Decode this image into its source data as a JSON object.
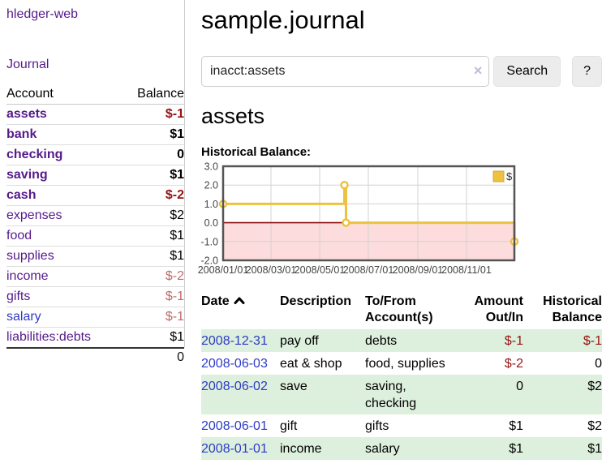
{
  "app": {
    "title": "hledger-web"
  },
  "sidebar": {
    "nav_journal": "Journal",
    "accounts_table": {
      "headers": {
        "account": "Account",
        "balance": "Balance"
      },
      "rows": [
        {
          "name": "assets",
          "depth": 1,
          "bold": true,
          "balance": "$-1"
        },
        {
          "name": "bank",
          "depth": 2,
          "bold": true,
          "balance": "$1"
        },
        {
          "name": "checking",
          "depth": 3,
          "bold": true,
          "balance": "0"
        },
        {
          "name": "saving",
          "depth": 3,
          "bold": true,
          "balance": "$1"
        },
        {
          "name": "cash",
          "depth": 2,
          "bold": true,
          "balance": "$-2"
        },
        {
          "name": "expenses",
          "depth": 1,
          "bold": false,
          "balance": "$2"
        },
        {
          "name": "food",
          "depth": 2,
          "bold": false,
          "balance": "$1"
        },
        {
          "name": "supplies",
          "depth": 2,
          "bold": false,
          "balance": "$1"
        },
        {
          "name": "income",
          "depth": 1,
          "bold": false,
          "balance": "$-2"
        },
        {
          "name": "gifts",
          "depth": 2,
          "bold": false,
          "balance": "$-1"
        },
        {
          "name": "salary",
          "depth": 2,
          "bold": false,
          "visited": false,
          "balance": "$-1"
        },
        {
          "name": "liabilities:debts",
          "depth": 1,
          "bold": false,
          "balance": "$1"
        }
      ],
      "total": "0"
    }
  },
  "header": {
    "title": "sample.journal"
  },
  "search": {
    "value": "inacct:assets",
    "clear_icon": "×",
    "button": "Search",
    "help_button": "?"
  },
  "account_page": {
    "heading": "assets",
    "chart_label": "Historical Balance:"
  },
  "chart_data": {
    "type": "line",
    "step": true,
    "title": "Historical Balance:",
    "series": [
      {
        "name": "$",
        "color": "#edc240",
        "points": [
          [
            "2008-01-01",
            1
          ],
          [
            "2008-06-01",
            2
          ],
          [
            "2008-06-03",
            0
          ],
          [
            "2008-12-31",
            -1
          ]
        ]
      }
    ],
    "x_range": [
      "2008-01-01",
      "2008-12-31"
    ],
    "x_ticks": [
      "2008/01/01",
      "2008/03/01",
      "2008/05/01",
      "2008/07/01",
      "2008/09/01",
      "2008/11/01"
    ],
    "y_ticks": [
      3.0,
      2.0,
      1.0,
      0.0,
      -1.0,
      -2.0
    ],
    "ylim": [
      -2,
      3
    ],
    "legend": {
      "label": "$",
      "position": "top-right"
    },
    "grid": true,
    "negative_region_color": "#fcdcdc",
    "zero_line_color": "#8e1111"
  },
  "register": {
    "headers": {
      "date": "Date",
      "description": "Description",
      "accounts": "To/From\nAccount(s)",
      "amount": "Amount\nOut/In",
      "balance": "Historical\nBalance",
      "sort_icon": "chevron-up"
    },
    "rows": [
      {
        "date": "2008-12-31",
        "description": "pay off",
        "accounts": "debts",
        "amount": "$-1",
        "balance": "$-1"
      },
      {
        "date": "2008-06-03",
        "description": "eat & shop",
        "accounts": "food, supplies",
        "amount": "$-2",
        "balance": "0"
      },
      {
        "date": "2008-06-02",
        "description": "save",
        "accounts": "saving, checking",
        "amount": "0",
        "balance": "$2"
      },
      {
        "date": "2008-06-01",
        "description": "gift",
        "accounts": "gifts",
        "amount": "$1",
        "balance": "$2"
      },
      {
        "date": "2008-01-01",
        "description": "income",
        "accounts": "salary",
        "amount": "$1",
        "balance": "$1"
      }
    ]
  },
  "colors": {
    "link_purple": "#551a8b",
    "link_blue": "#2d3bc4",
    "negative_strong": "#951414",
    "negative_muted": "#bf6a6a",
    "row_green": "#ddefdd",
    "series_yellow": "#edc240"
  }
}
